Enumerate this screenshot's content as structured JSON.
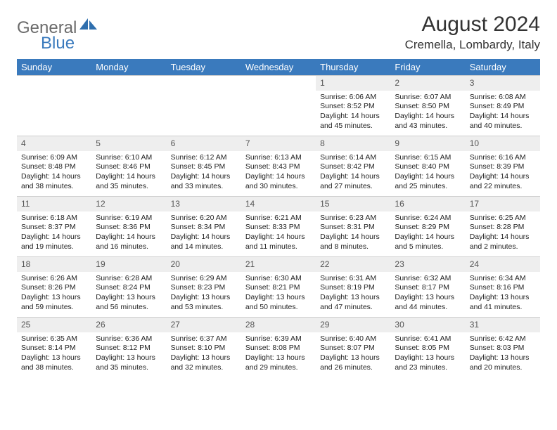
{
  "logo": {
    "text1": "General",
    "text2": "Blue"
  },
  "title": "August 2024",
  "location": "Cremella, Lombardy, Italy",
  "header_bg": "#3a7abd",
  "daynum_bg": "#eeeeee",
  "dayNames": [
    "Sunday",
    "Monday",
    "Tuesday",
    "Wednesday",
    "Thursday",
    "Friday",
    "Saturday"
  ],
  "weeks": [
    [
      {
        "n": "",
        "sr": "",
        "ss": "",
        "dl": ""
      },
      {
        "n": "",
        "sr": "",
        "ss": "",
        "dl": ""
      },
      {
        "n": "",
        "sr": "",
        "ss": "",
        "dl": ""
      },
      {
        "n": "",
        "sr": "",
        "ss": "",
        "dl": ""
      },
      {
        "n": "1",
        "sr": "Sunrise: 6:06 AM",
        "ss": "Sunset: 8:52 PM",
        "dl": "Daylight: 14 hours and 45 minutes."
      },
      {
        "n": "2",
        "sr": "Sunrise: 6:07 AM",
        "ss": "Sunset: 8:50 PM",
        "dl": "Daylight: 14 hours and 43 minutes."
      },
      {
        "n": "3",
        "sr": "Sunrise: 6:08 AM",
        "ss": "Sunset: 8:49 PM",
        "dl": "Daylight: 14 hours and 40 minutes."
      }
    ],
    [
      {
        "n": "4",
        "sr": "Sunrise: 6:09 AM",
        "ss": "Sunset: 8:48 PM",
        "dl": "Daylight: 14 hours and 38 minutes."
      },
      {
        "n": "5",
        "sr": "Sunrise: 6:10 AM",
        "ss": "Sunset: 8:46 PM",
        "dl": "Daylight: 14 hours and 35 minutes."
      },
      {
        "n": "6",
        "sr": "Sunrise: 6:12 AM",
        "ss": "Sunset: 8:45 PM",
        "dl": "Daylight: 14 hours and 33 minutes."
      },
      {
        "n": "7",
        "sr": "Sunrise: 6:13 AM",
        "ss": "Sunset: 8:43 PM",
        "dl": "Daylight: 14 hours and 30 minutes."
      },
      {
        "n": "8",
        "sr": "Sunrise: 6:14 AM",
        "ss": "Sunset: 8:42 PM",
        "dl": "Daylight: 14 hours and 27 minutes."
      },
      {
        "n": "9",
        "sr": "Sunrise: 6:15 AM",
        "ss": "Sunset: 8:40 PM",
        "dl": "Daylight: 14 hours and 25 minutes."
      },
      {
        "n": "10",
        "sr": "Sunrise: 6:16 AM",
        "ss": "Sunset: 8:39 PM",
        "dl": "Daylight: 14 hours and 22 minutes."
      }
    ],
    [
      {
        "n": "11",
        "sr": "Sunrise: 6:18 AM",
        "ss": "Sunset: 8:37 PM",
        "dl": "Daylight: 14 hours and 19 minutes."
      },
      {
        "n": "12",
        "sr": "Sunrise: 6:19 AM",
        "ss": "Sunset: 8:36 PM",
        "dl": "Daylight: 14 hours and 16 minutes."
      },
      {
        "n": "13",
        "sr": "Sunrise: 6:20 AM",
        "ss": "Sunset: 8:34 PM",
        "dl": "Daylight: 14 hours and 14 minutes."
      },
      {
        "n": "14",
        "sr": "Sunrise: 6:21 AM",
        "ss": "Sunset: 8:33 PM",
        "dl": "Daylight: 14 hours and 11 minutes."
      },
      {
        "n": "15",
        "sr": "Sunrise: 6:23 AM",
        "ss": "Sunset: 8:31 PM",
        "dl": "Daylight: 14 hours and 8 minutes."
      },
      {
        "n": "16",
        "sr": "Sunrise: 6:24 AM",
        "ss": "Sunset: 8:29 PM",
        "dl": "Daylight: 14 hours and 5 minutes."
      },
      {
        "n": "17",
        "sr": "Sunrise: 6:25 AM",
        "ss": "Sunset: 8:28 PM",
        "dl": "Daylight: 14 hours and 2 minutes."
      }
    ],
    [
      {
        "n": "18",
        "sr": "Sunrise: 6:26 AM",
        "ss": "Sunset: 8:26 PM",
        "dl": "Daylight: 13 hours and 59 minutes."
      },
      {
        "n": "19",
        "sr": "Sunrise: 6:28 AM",
        "ss": "Sunset: 8:24 PM",
        "dl": "Daylight: 13 hours and 56 minutes."
      },
      {
        "n": "20",
        "sr": "Sunrise: 6:29 AM",
        "ss": "Sunset: 8:23 PM",
        "dl": "Daylight: 13 hours and 53 minutes."
      },
      {
        "n": "21",
        "sr": "Sunrise: 6:30 AM",
        "ss": "Sunset: 8:21 PM",
        "dl": "Daylight: 13 hours and 50 minutes."
      },
      {
        "n": "22",
        "sr": "Sunrise: 6:31 AM",
        "ss": "Sunset: 8:19 PM",
        "dl": "Daylight: 13 hours and 47 minutes."
      },
      {
        "n": "23",
        "sr": "Sunrise: 6:32 AM",
        "ss": "Sunset: 8:17 PM",
        "dl": "Daylight: 13 hours and 44 minutes."
      },
      {
        "n": "24",
        "sr": "Sunrise: 6:34 AM",
        "ss": "Sunset: 8:16 PM",
        "dl": "Daylight: 13 hours and 41 minutes."
      }
    ],
    [
      {
        "n": "25",
        "sr": "Sunrise: 6:35 AM",
        "ss": "Sunset: 8:14 PM",
        "dl": "Daylight: 13 hours and 38 minutes."
      },
      {
        "n": "26",
        "sr": "Sunrise: 6:36 AM",
        "ss": "Sunset: 8:12 PM",
        "dl": "Daylight: 13 hours and 35 minutes."
      },
      {
        "n": "27",
        "sr": "Sunrise: 6:37 AM",
        "ss": "Sunset: 8:10 PM",
        "dl": "Daylight: 13 hours and 32 minutes."
      },
      {
        "n": "28",
        "sr": "Sunrise: 6:39 AM",
        "ss": "Sunset: 8:08 PM",
        "dl": "Daylight: 13 hours and 29 minutes."
      },
      {
        "n": "29",
        "sr": "Sunrise: 6:40 AM",
        "ss": "Sunset: 8:07 PM",
        "dl": "Daylight: 13 hours and 26 minutes."
      },
      {
        "n": "30",
        "sr": "Sunrise: 6:41 AM",
        "ss": "Sunset: 8:05 PM",
        "dl": "Daylight: 13 hours and 23 minutes."
      },
      {
        "n": "31",
        "sr": "Sunrise: 6:42 AM",
        "ss": "Sunset: 8:03 PM",
        "dl": "Daylight: 13 hours and 20 minutes."
      }
    ]
  ]
}
